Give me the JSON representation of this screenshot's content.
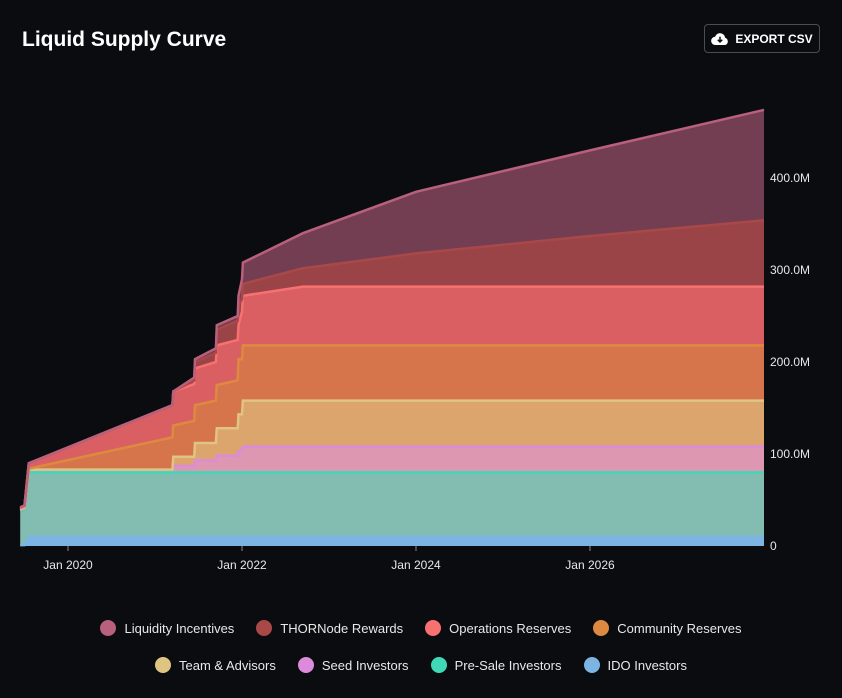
{
  "header": {
    "title": "Liquid Supply Curve",
    "export_label": "EXPORT CSV",
    "export_icon": "cloud-download-icon"
  },
  "chart_data": {
    "type": "area",
    "stacked": true,
    "values_are_cumulative_stack_tops": true,
    "title": "Liquid Supply Curve",
    "x": [
      2019.45,
      2019.5,
      2019.55,
      2021.2,
      2021.21,
      2021.45,
      2021.46,
      2021.7,
      2021.71,
      2021.95,
      2021.96,
      2022.0,
      2022.01,
      2022.7,
      2024,
      2026,
      2028
    ],
    "x_ticks": [
      {
        "value": 2020,
        "label": "Jan 2020"
      },
      {
        "value": 2022,
        "label": "Jan 2022"
      },
      {
        "value": 2024,
        "label": "Jan 2024"
      },
      {
        "value": 2026,
        "label": "Jan 2026"
      }
    ],
    "y_ticks": [
      {
        "value": 0,
        "label": "0"
      },
      {
        "value": 100,
        "label": "100.0M"
      },
      {
        "value": 200,
        "label": "200.0M"
      },
      {
        "value": 300,
        "label": "300.0M"
      },
      {
        "value": 400,
        "label": "400.0M"
      }
    ],
    "ylabel_units": "M",
    "xlim": [
      2019.45,
      2028
    ],
    "ylim": [
      0,
      480
    ],
    "legend_position": "bottom",
    "series": [
      {
        "name": "IDO Investors",
        "color": "#7cb4e4",
        "fill": "#7cb4e4",
        "values": [
          1,
          1,
          10,
          10,
          10,
          10,
          10,
          10,
          10,
          10,
          10,
          10,
          10,
          10,
          10,
          10,
          10
        ]
      },
      {
        "name": "Pre-Sale Investors",
        "color": "#40d8b8",
        "fill": "#83bcb1",
        "values": [
          38,
          40,
          80,
          80,
          80,
          80,
          80,
          80,
          80,
          80,
          80,
          80,
          80,
          80,
          80,
          80,
          80
        ]
      },
      {
        "name": "Seed Investors",
        "color": "#dc8adc",
        "fill": "#de97b0",
        "values": [
          39,
          41,
          83,
          83,
          87,
          87,
          93,
          93,
          98,
          98,
          103,
          103,
          108,
          108,
          108,
          108,
          108
        ]
      },
      {
        "name": "Team & Advisors",
        "color": "#e0c482",
        "fill": "#dca56e",
        "values": [
          40,
          42,
          83,
          83,
          97,
          97,
          112,
          112,
          128,
          128,
          143,
          143,
          158,
          158,
          158,
          158,
          158
        ]
      },
      {
        "name": "Community Reserves",
        "color": "#dd8a40",
        "fill": "#d6744c",
        "values": [
          41,
          43,
          84,
          118,
          131,
          136,
          153,
          158,
          175,
          180,
          203,
          203,
          218,
          218,
          218,
          218,
          218
        ]
      },
      {
        "name": "Operations Reserves",
        "color": "#f87171",
        "fill": "#d95f63",
        "values": [
          42,
          44,
          90,
          153,
          168,
          176,
          193,
          200,
          218,
          224,
          240,
          255,
          272,
          282,
          282,
          282,
          282
        ]
      },
      {
        "name": "THORNode Rewards",
        "color": "#a94848",
        "fill": "#9a4448",
        "values": [
          42,
          44,
          90,
          153,
          168,
          180,
          200,
          210,
          235,
          245,
          262,
          268,
          285,
          302,
          318,
          337,
          354
        ]
      },
      {
        "name": "Liquidity Incentives",
        "color": "#b8607c",
        "fill": "#733d52",
        "values": [
          42,
          44,
          90,
          153,
          168,
          183,
          203,
          215,
          240,
          250,
          272,
          290,
          308,
          340,
          385,
          430,
          474
        ]
      }
    ]
  },
  "legend": {
    "row1": [
      {
        "label": "Liquidity Incentives",
        "color": "#b8607c"
      },
      {
        "label": "THORNode Rewards",
        "color": "#a94848"
      },
      {
        "label": "Operations Reserves",
        "color": "#f87171"
      },
      {
        "label": "Community Reserves",
        "color": "#dd8a40"
      }
    ],
    "row2": [
      {
        "label": "Team & Advisors",
        "color": "#e0c482"
      },
      {
        "label": "Seed Investors",
        "color": "#dc8adc"
      },
      {
        "label": "Pre-Sale Investors",
        "color": "#40d8b8"
      },
      {
        "label": "IDO Investors",
        "color": "#7cb4e4"
      }
    ]
  }
}
